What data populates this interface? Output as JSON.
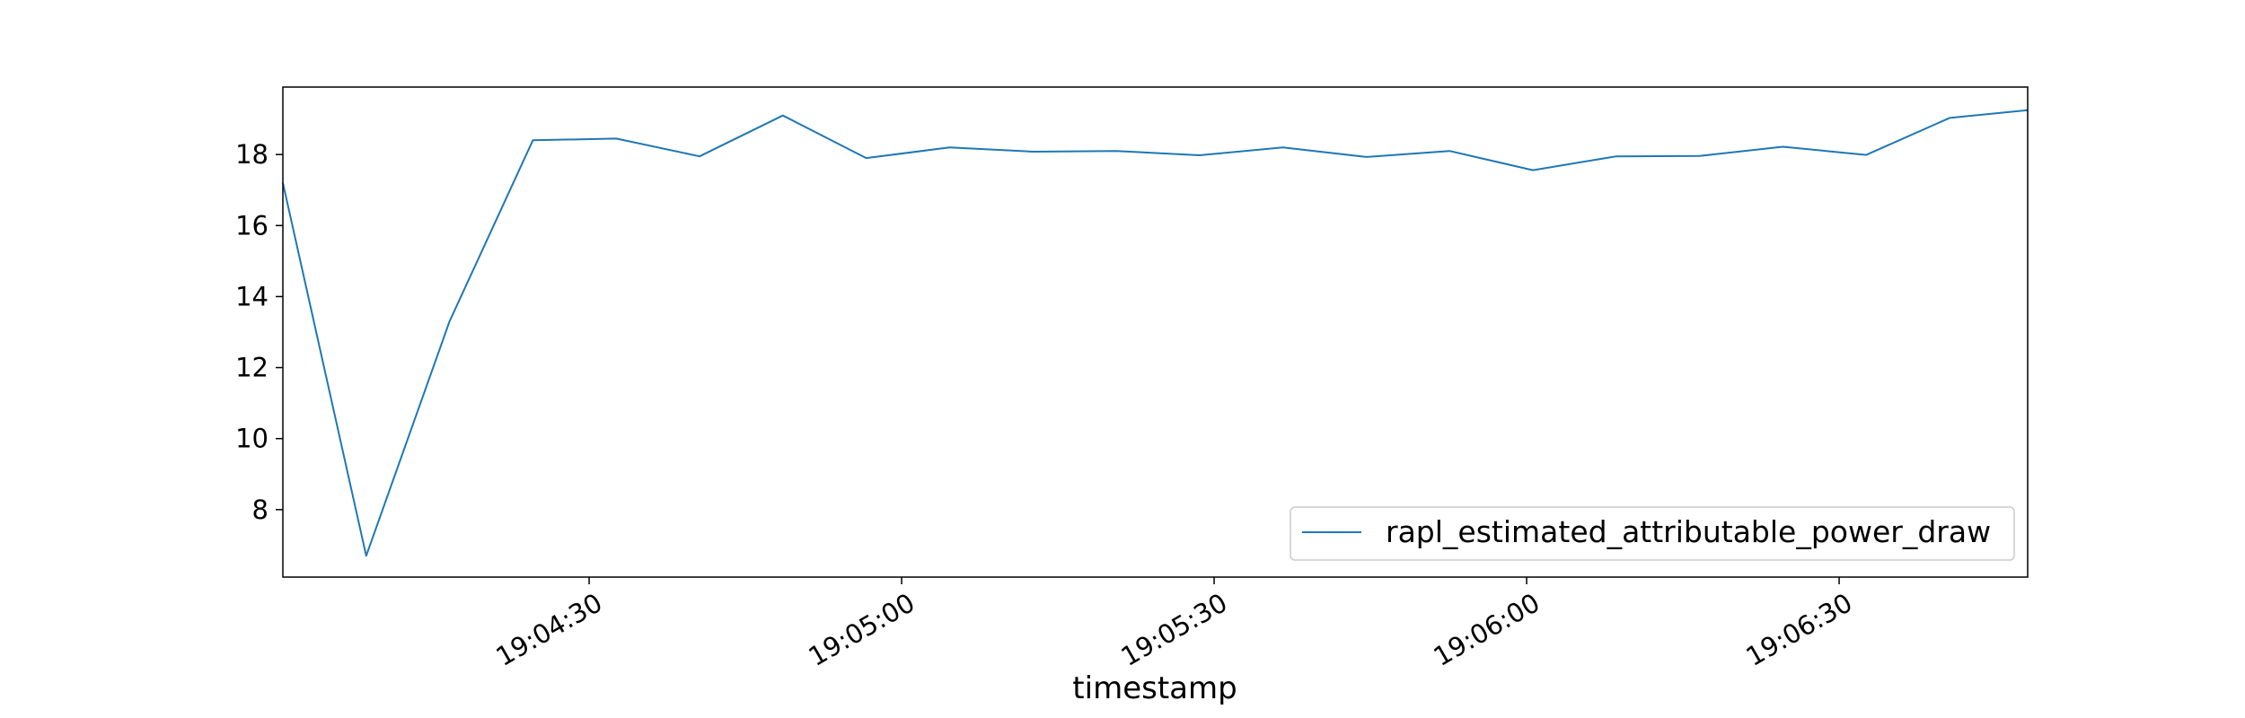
{
  "chart_data": {
    "type": "line",
    "title": "",
    "xlabel": "timestamp",
    "ylabel": "",
    "x_tick_labels": [
      "19:04:30",
      "19:05:00",
      "19:05:30",
      "19:06:00",
      "19:06:30"
    ],
    "y_ticks": [
      8,
      10,
      12,
      14,
      16,
      18
    ],
    "ylim": [
      6.1,
      19.9
    ],
    "xlim": [
      "19:04:00.6",
      "19:06:48.1"
    ],
    "grid": false,
    "legend_position": "lower right",
    "series": [
      {
        "name": "rapl_estimated_attributable_power_draw",
        "color": "#1f77b4",
        "x": [
          "19:04:00.6",
          "19:04:08.6",
          "19:04:16.6",
          "19:04:24.6",
          "19:04:32.6",
          "19:04:40.6",
          "19:04:48.6",
          "19:04:56.6",
          "19:05:04.6",
          "19:05:12.6",
          "19:05:20.6",
          "19:05:28.6",
          "19:05:36.6",
          "19:05:44.6",
          "19:05:52.6",
          "19:06:00.6",
          "19:06:08.6",
          "19:06:16.6",
          "19:06:24.6",
          "19:06:32.6",
          "19:06:40.6",
          "19:06:48.1"
        ],
        "values": [
          17.2,
          6.7,
          13.3,
          18.4,
          18.45,
          17.95,
          19.1,
          17.9,
          18.2,
          18.08,
          18.1,
          17.98,
          18.2,
          17.93,
          18.1,
          17.56,
          17.95,
          17.96,
          18.22,
          17.99,
          19.03,
          19.25
        ]
      }
    ]
  }
}
